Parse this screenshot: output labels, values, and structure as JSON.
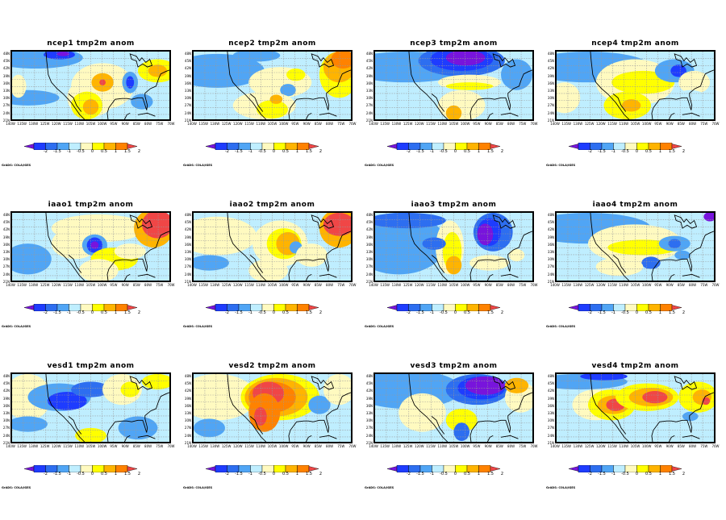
{
  "chart_data": {
    "type": "heatmap",
    "variable": "tmp2m anom",
    "panels": [
      {
        "title": "ncep1  tmp2m  anom"
      },
      {
        "title": "ncep2  tmp2m  anom"
      },
      {
        "title": "ncep3  tmp2m  anom"
      },
      {
        "title": "ncep4  tmp2m  anom"
      },
      {
        "title": "iaao1  tmp2m  anom"
      },
      {
        "title": "iaao2  tmp2m  anom"
      },
      {
        "title": "iaao3  tmp2m  anom"
      },
      {
        "title": "iaao4  tmp2m  anom"
      },
      {
        "title": "vesd1  tmp2m  anom"
      },
      {
        "title": "vesd2  tmp2m  anom"
      },
      {
        "title": "vesd3  tmp2m  anom"
      },
      {
        "title": "vesd4  tmp2m  anom"
      }
    ],
    "x_ticks": [
      "140W",
      "135W",
      "130W",
      "125W",
      "120W",
      "115W",
      "110W",
      "105W",
      "100W",
      "95W",
      "90W",
      "85W",
      "80W",
      "75W",
      "70W"
    ],
    "y_ticks": [
      "48N",
      "45N",
      "42N",
      "39N",
      "36N",
      "33N",
      "30N",
      "27N",
      "24N",
      "21N"
    ],
    "colorbar": {
      "levels": [
        "-2",
        "-1.5",
        "-1",
        "-0.5",
        "0",
        "0.5",
        "1",
        "1.5",
        "2"
      ],
      "colors": [
        "#7814dc",
        "#1e3cff",
        "#2d6ef0",
        "#50a5f5",
        "#bfeeff",
        "#fffac0",
        "#ffff00",
        "#ffb400",
        "#ff8200",
        "#f04646"
      ]
    },
    "grid": true,
    "footer": "GrADS: COLA/IGES"
  }
}
